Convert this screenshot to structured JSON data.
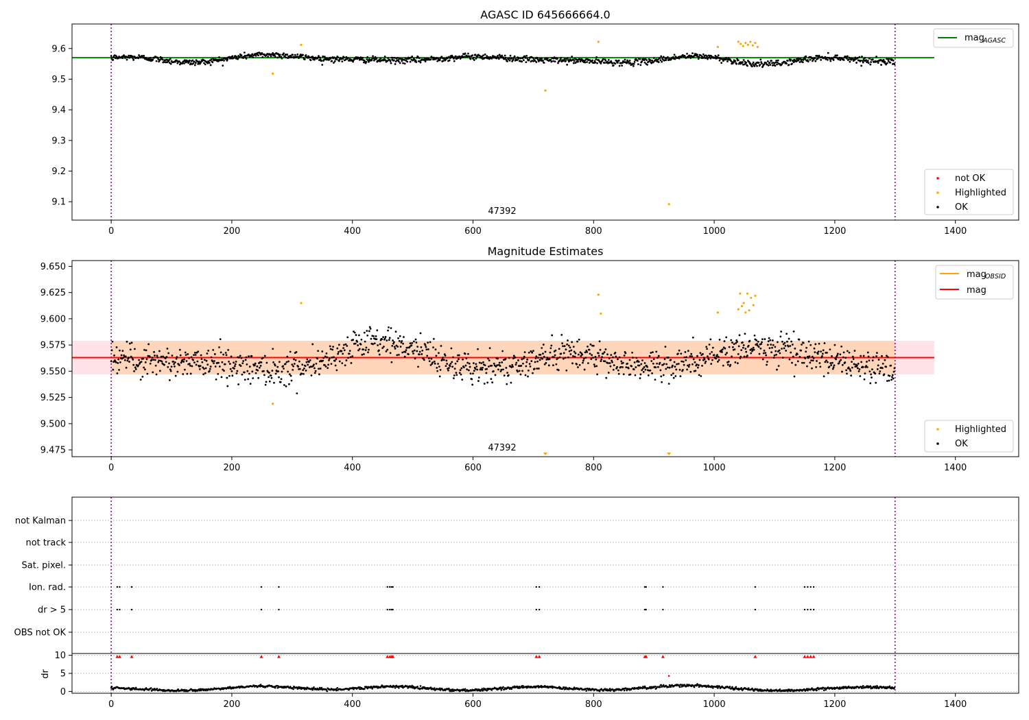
{
  "figure": {
    "width": 1500,
    "height": 1050
  },
  "chart_data": [
    {
      "type": "scatter",
      "title": "AGASC ID 645666664.0",
      "xlim": [
        -65,
        1505
      ],
      "ylim": [
        9.04,
        9.68
      ],
      "xticks": [
        0,
        200,
        400,
        600,
        800,
        1000,
        1200,
        1400
      ],
      "yticks": [
        9.1,
        9.2,
        9.3,
        9.4,
        9.5,
        9.6
      ],
      "ytick_labels": [
        "9.1",
        "9.2",
        "9.3",
        "9.4",
        "9.5",
        "9.6"
      ],
      "vlines": [
        0,
        1300
      ],
      "obsid_label": {
        "text": "47392",
        "x": 650
      },
      "mag_agasc": 9.57,
      "mag_line_xmax": 1365,
      "line_legend": {
        "label": "mag",
        "subscript": "AGASC",
        "color": "#008000",
        "loc": "upper right"
      },
      "marker_legend": {
        "loc": "lower right",
        "items": [
          {
            "label": "not OK",
            "color": "#ff0000"
          },
          {
            "label": "Highlighted",
            "color": "#ffa500"
          },
          {
            "label": "OK",
            "color": "#000000"
          }
        ]
      },
      "series": [
        {
          "name": "OK",
          "color": "#000000",
          "n": 1300,
          "center": 9.565,
          "noise": 0.009
        },
        {
          "name": "Highlighted",
          "color": "#ffa500",
          "points": [
            [
              268,
              9.518
            ],
            [
              315,
              9.612
            ],
            [
              720,
              9.463
            ],
            [
              808,
              9.622
            ],
            [
              925,
              9.092
            ],
            [
              1006,
              9.605
            ],
            [
              1040,
              9.622
            ],
            [
              1044,
              9.615
            ],
            [
              1048,
              9.608
            ],
            [
              1052,
              9.618
            ],
            [
              1056,
              9.612
            ],
            [
              1060,
              9.622
            ],
            [
              1064,
              9.61
            ],
            [
              1068,
              9.618
            ],
            [
              1072,
              9.605
            ]
          ]
        },
        {
          "name": "not OK",
          "color": "#ff0000",
          "points": []
        }
      ]
    },
    {
      "type": "scatter",
      "title": "Magnitude Estimates",
      "xlim": [
        -65,
        1505
      ],
      "ylim": [
        9.4685,
        9.6555
      ],
      "xticks": [
        0,
        200,
        400,
        600,
        800,
        1000,
        1200,
        1400
      ],
      "yticks": [
        9.475,
        9.5,
        9.525,
        9.55,
        9.575,
        9.6,
        9.625,
        9.65
      ],
      "ytick_labels": [
        "9.475",
        "9.500",
        "9.525",
        "9.550",
        "9.575",
        "9.600",
        "9.625",
        "9.650"
      ],
      "vlines": [
        0,
        1300
      ],
      "obsid_label": {
        "text": "47392",
        "x": 650
      },
      "mag_obsid": 9.563,
      "band_low": 9.547,
      "band_high": 9.579,
      "band_xmax": 1365,
      "line_legend": {
        "loc": "upper right",
        "items": [
          {
            "label": "mag",
            "subscript": "OBSID",
            "color": "#ffa500"
          },
          {
            "label": "mag",
            "subscript": "",
            "color": "#ff0000"
          }
        ]
      },
      "marker_legend": {
        "loc": "lower right",
        "items": [
          {
            "label": "Highlighted",
            "color": "#ffa500"
          },
          {
            "label": "OK",
            "color": "#000000"
          }
        ]
      },
      "series": [
        {
          "name": "OK",
          "color": "#000000",
          "n": 1300,
          "center": 9.562,
          "noise": 0.011
        },
        {
          "name": "Highlighted",
          "color": "#ffa500",
          "points": [
            [
              268,
              9.519
            ],
            [
              315,
              9.615
            ],
            [
              808,
              9.623
            ],
            [
              812,
              9.605
            ],
            [
              1006,
              9.606
            ],
            [
              1040,
              9.609
            ],
            [
              1043,
              9.624
            ],
            [
              1046,
              9.612
            ],
            [
              1049,
              9.615
            ],
            [
              1052,
              9.606
            ],
            [
              1055,
              9.624
            ],
            [
              1058,
              9.608
            ],
            [
              1061,
              9.62
            ],
            [
              1065,
              9.613
            ],
            [
              1068,
              9.622
            ]
          ]
        },
        {
          "name": "Highlighted (below range)",
          "color": "#ffa500",
          "points": [
            [
              720,
              9.47
            ],
            [
              925,
              9.47
            ]
          ]
        }
      ]
    },
    {
      "type": "scatter",
      "title": "",
      "xlim": [
        -65,
        1505
      ],
      "xticks": [
        0,
        200,
        400,
        600,
        800,
        1000,
        1200,
        1400
      ],
      "vlines": [
        0,
        1300
      ],
      "flag_rows": [
        "not Kalman",
        "not track",
        "Sat. pixel.",
        "Ion. rad.",
        "dr > 5",
        "OBS not OK"
      ],
      "flag_points": {
        "Ion. rad.": [
          10,
          14,
          34,
          249,
          278,
          458,
          462,
          465,
          467,
          705,
          710,
          885,
          887,
          915,
          1068,
          1150,
          1155,
          1160,
          1165
        ],
        "dr > 5": [
          10,
          14,
          34,
          249,
          278,
          458,
          462,
          465,
          467,
          705,
          710,
          885,
          887,
          915,
          1068,
          1150,
          1155,
          1160,
          1165
        ]
      },
      "dr_ylabel": "dr",
      "dr_ylim": [
        -0.5,
        10.5
      ],
      "dr_yticks": [
        0,
        5,
        10
      ],
      "dr_markers": [
        10,
        14,
        34,
        249,
        278,
        458,
        462,
        465,
        467,
        705,
        710,
        885,
        887,
        915,
        1068,
        1150,
        1155,
        1160,
        1165
      ],
      "dr_outliers": [
        [
          925,
          4.3
        ]
      ],
      "dr_series": {
        "n": 1300,
        "center": 0.9,
        "noise": 0.35
      }
    }
  ]
}
